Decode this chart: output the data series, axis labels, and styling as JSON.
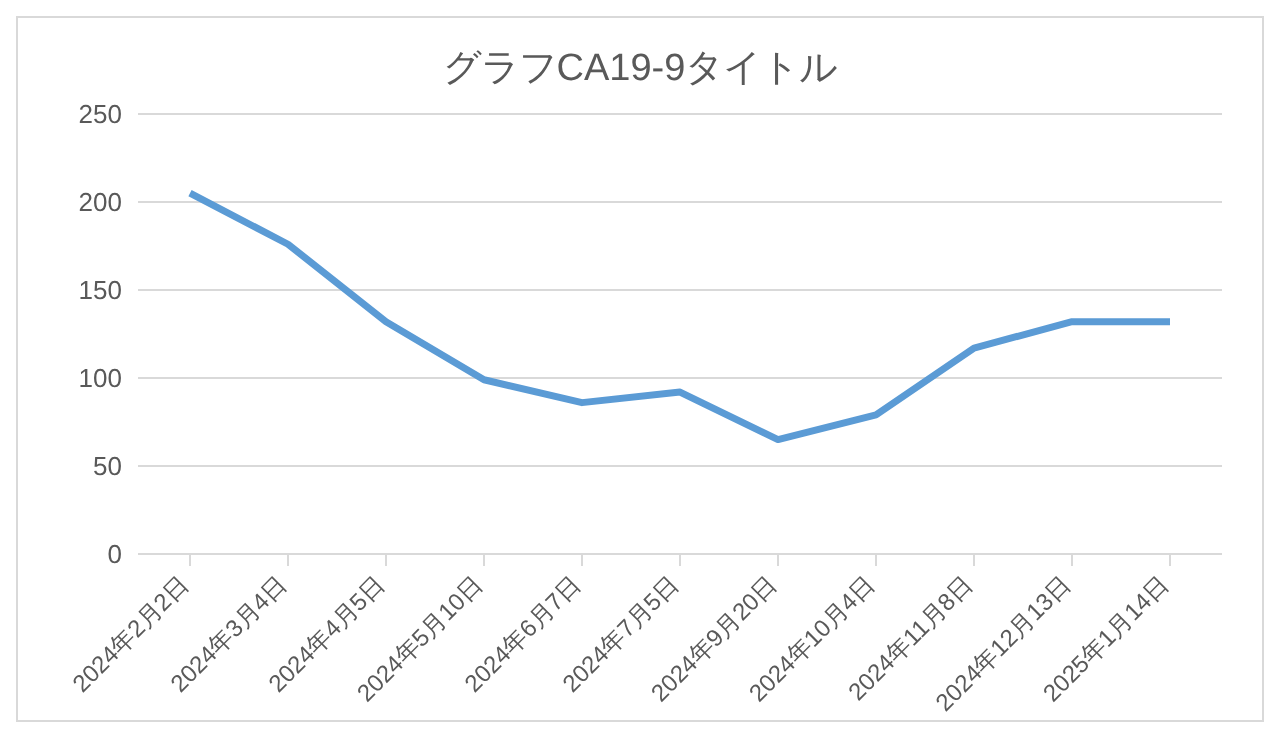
{
  "chart_data": {
    "type": "line",
    "title": "グラフCA19-9タイトル",
    "categories": [
      "2024年2月2日",
      "2024年3月4日",
      "2024年4月5日",
      "2024年5月10日",
      "2024年6月7日",
      "2024年7月5日",
      "2024年9月20日",
      "2024年10月4日",
      "2024年11月8日",
      "2024年12月13日",
      "2025年1月14日"
    ],
    "series": [
      {
        "color": "#5b9bd5",
        "values": [
          205,
          176,
          132,
          99,
          86,
          92,
          65,
          79,
          117,
          132,
          132
        ]
      }
    ],
    "ylim": [
      0,
      250
    ],
    "yticks": [
      0,
      50,
      100,
      150,
      200,
      250
    ],
    "grid": "y",
    "legend": false,
    "marker": "none",
    "line_style": "solid"
  }
}
